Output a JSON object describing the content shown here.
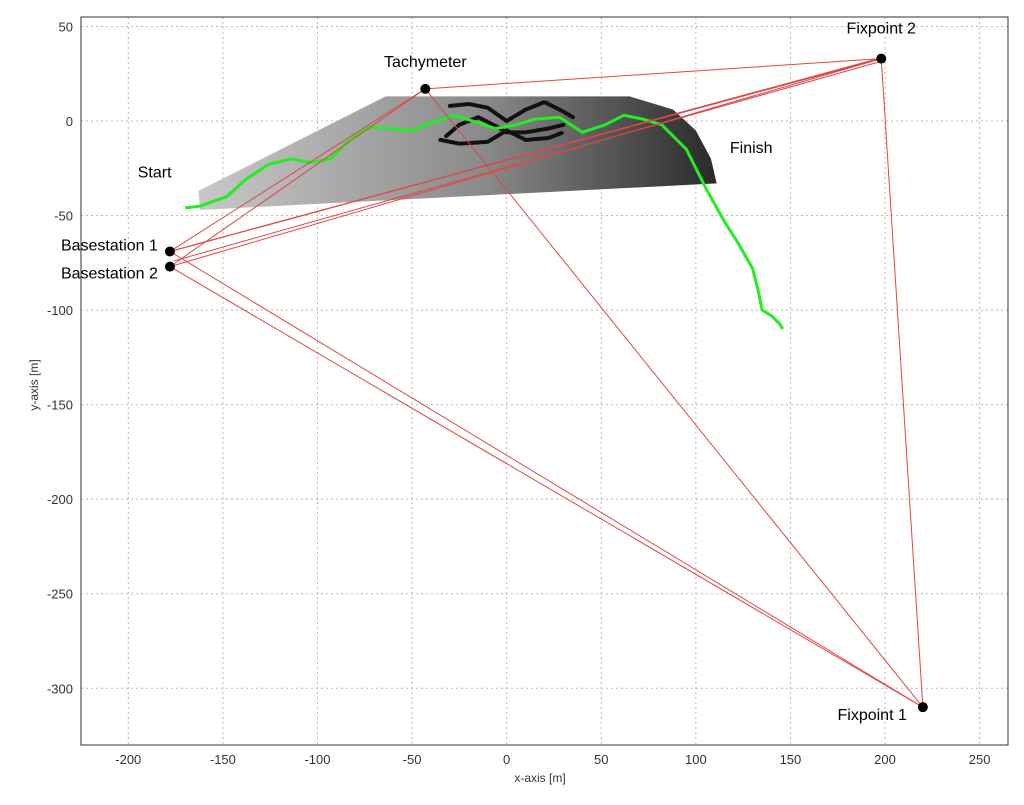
{
  "chart_data": {
    "type": "scatter",
    "title": "",
    "xlabel": "x-axis [m]",
    "ylabel": "y-axis [m]",
    "xlim": [
      -225,
      265
    ],
    "ylim": [
      -330,
      55
    ],
    "grid": true,
    "x_ticks": [
      -200,
      -150,
      -100,
      -50,
      0,
      50,
      100,
      150,
      200,
      250
    ],
    "y_ticks": [
      50,
      0,
      -50,
      -100,
      -150,
      -200,
      -250,
      -300
    ],
    "x_tick_labels": [
      "-200",
      "-150",
      "-100",
      "-50",
      "0",
      "50",
      "100",
      "150",
      "200",
      "250"
    ],
    "y_tick_labels": [
      "50",
      "0",
      "-50",
      "-100",
      "-150",
      "-200",
      "-250",
      "-300"
    ],
    "points": [
      {
        "label": "Tachymeter",
        "x": -43,
        "y": 17
      },
      {
        "label": "Fixpoint 2",
        "x": 198,
        "y": 33
      },
      {
        "label": "Fixpoint 1",
        "x": 220,
        "y": -310
      },
      {
        "label": "Basestation 1",
        "x": -178,
        "y": -69
      },
      {
        "label": "Basestation 2",
        "x": -178,
        "y": -77
      }
    ],
    "annotations": [
      {
        "text": "Start",
        "x": -195,
        "y": -30
      },
      {
        "text": "Finish",
        "x": 118,
        "y": -17
      }
    ],
    "sight_lines": [
      [
        -178,
        -69,
        -43,
        17
      ],
      [
        -178,
        -69,
        198,
        33
      ],
      [
        -178,
        -69,
        200,
        34
      ],
      [
        -178,
        -69,
        220,
        -310
      ],
      [
        -178,
        -77,
        -43,
        17
      ],
      [
        -178,
        -77,
        198,
        33
      ],
      [
        -178,
        -77,
        220,
        -310
      ],
      [
        -176,
        -74,
        196,
        31
      ],
      [
        -43,
        17,
        198,
        33
      ],
      [
        -43,
        17,
        220,
        -310
      ],
      [
        198,
        33,
        220,
        -310
      ],
      [
        198,
        33,
        -178,
        -69
      ]
    ],
    "line_color": "#e04646",
    "area_polygon": [
      [
        -163,
        -37
      ],
      [
        -64,
        13
      ],
      [
        65,
        13
      ],
      [
        88,
        6
      ],
      [
        100,
        -5
      ],
      [
        108,
        -20
      ],
      [
        111,
        -33
      ],
      [
        -162,
        -47
      ]
    ],
    "track": {
      "color": "#22ee22",
      "points": [
        [
          -170,
          -46
        ],
        [
          -162,
          -45
        ],
        [
          -148,
          -40
        ],
        [
          -138,
          -31
        ],
        [
          -126,
          -23
        ],
        [
          -114,
          -20
        ],
        [
          -104,
          -22
        ],
        [
          -93,
          -20
        ],
        [
          -83,
          -10
        ],
        [
          -72,
          -3
        ],
        [
          -62,
          -4
        ],
        [
          -50,
          -5
        ],
        [
          -40,
          -1
        ],
        [
          -28,
          3
        ],
        [
          -18,
          0
        ],
        [
          -6,
          -4
        ],
        [
          5,
          -2
        ],
        [
          15,
          1
        ],
        [
          28,
          2
        ],
        [
          40,
          -6
        ],
        [
          52,
          -2
        ],
        [
          62,
          3
        ],
        [
          72,
          1
        ],
        [
          82,
          -2
        ],
        [
          95,
          -15
        ],
        [
          105,
          -35
        ],
        [
          115,
          -53
        ],
        [
          122,
          -64
        ],
        [
          130,
          -78
        ],
        [
          133,
          -90
        ],
        [
          135,
          -100
        ],
        [
          140,
          -103
        ],
        [
          144,
          -107
        ],
        [
          146,
          -110
        ]
      ]
    },
    "trace": {
      "color": "#111111",
      "paths": [
        [
          [
            -30,
            8
          ],
          [
            -20,
            9
          ],
          [
            -10,
            7
          ],
          [
            0,
            0
          ],
          [
            10,
            6
          ],
          [
            20,
            10
          ],
          [
            30,
            5
          ],
          [
            35,
            2
          ]
        ],
        [
          [
            -32,
            -8
          ],
          [
            -25,
            -2
          ],
          [
            -15,
            2
          ],
          [
            -5,
            -3
          ],
          [
            0,
            -6
          ],
          [
            10,
            -6
          ],
          [
            22,
            -4
          ],
          [
            30,
            -2
          ]
        ],
        [
          [
            -35,
            -10
          ],
          [
            -25,
            -12
          ],
          [
            -10,
            -11
          ],
          [
            0,
            -5
          ],
          [
            10,
            -10
          ],
          [
            22,
            -9
          ],
          [
            30,
            -6
          ]
        ]
      ]
    }
  }
}
